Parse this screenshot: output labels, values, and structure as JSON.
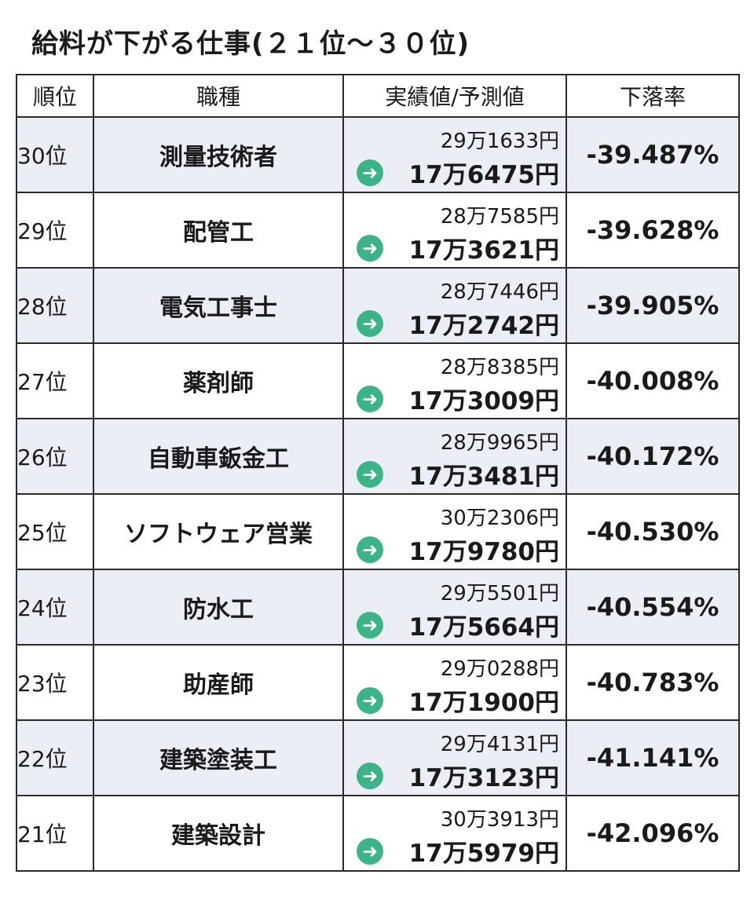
{
  "title": "給料が下がる仕事(２１位～３０位)",
  "colors": {
    "arrow": "#3cb488",
    "row_shade": "#eceef5",
    "border": "#2a2a2a"
  },
  "icons": {
    "arrow": "arrow-right-circle-icon"
  },
  "table": {
    "headers": [
      "順位",
      "職種",
      "実績値/予測値",
      "下落率"
    ],
    "rows": [
      {
        "rank": "30位",
        "job": "測量技術者",
        "actual": "29万1633円",
        "forecast": "17万6475円",
        "rate": "-39.487%"
      },
      {
        "rank": "29位",
        "job": "配管工",
        "actual": "28万7585円",
        "forecast": "17万3621円",
        "rate": "-39.628%"
      },
      {
        "rank": "28位",
        "job": "電気工事士",
        "actual": "28万7446円",
        "forecast": "17万2742円",
        "rate": "-39.905%"
      },
      {
        "rank": "27位",
        "job": "薬剤師",
        "actual": "28万8385円",
        "forecast": "17万3009円",
        "rate": "-40.008%"
      },
      {
        "rank": "26位",
        "job": "自動車鈑金工",
        "actual": "28万9965円",
        "forecast": "17万3481円",
        "rate": "-40.172%"
      },
      {
        "rank": "25位",
        "job": "ソフトウェア営業",
        "actual": "30万2306円",
        "forecast": "17万9780円",
        "rate": "-40.530%"
      },
      {
        "rank": "24位",
        "job": "防水工",
        "actual": "29万5501円",
        "forecast": "17万5664円",
        "rate": "-40.554%"
      },
      {
        "rank": "23位",
        "job": "助産師",
        "actual": "29万0288円",
        "forecast": "17万1900円",
        "rate": "-40.783%"
      },
      {
        "rank": "22位",
        "job": "建築塗装工",
        "actual": "29万4131円",
        "forecast": "17万3123円",
        "rate": "-41.141%"
      },
      {
        "rank": "21位",
        "job": "建築設計",
        "actual": "30万3913円",
        "forecast": "17万5979円",
        "rate": "-42.096%"
      }
    ]
  }
}
